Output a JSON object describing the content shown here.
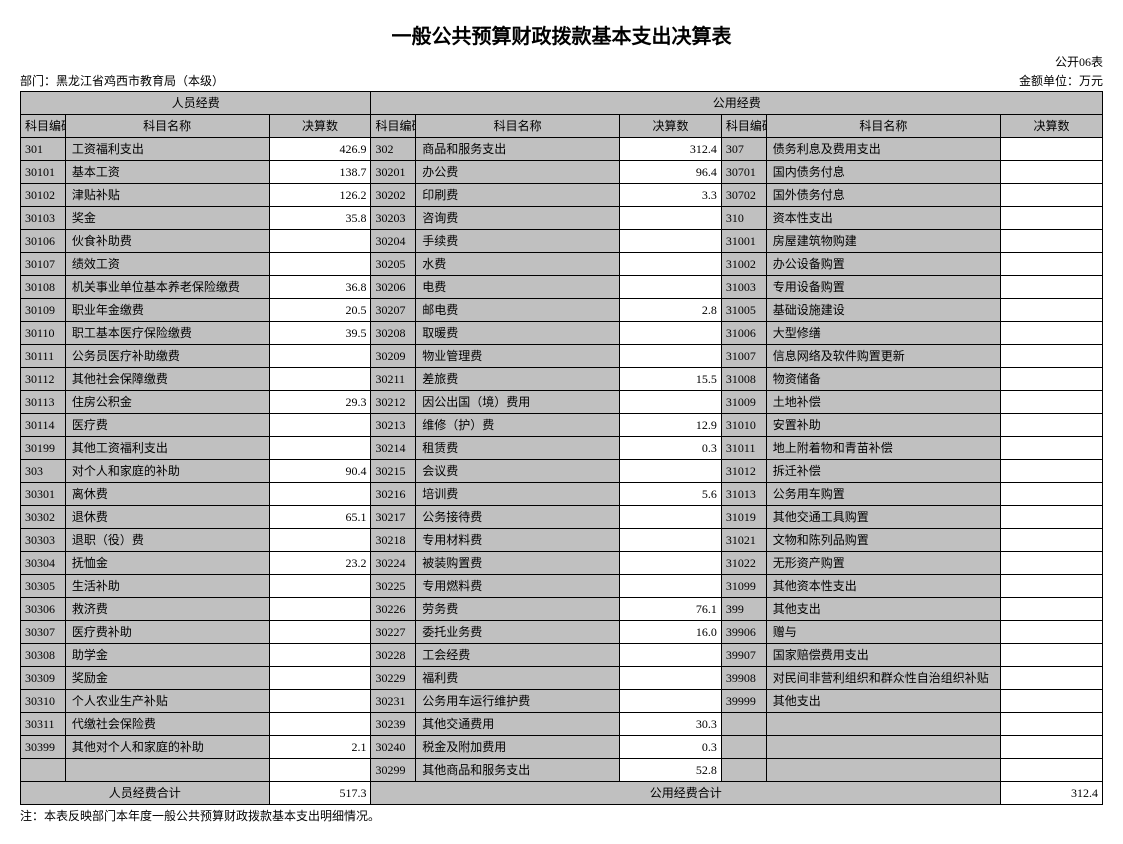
{
  "title": "一般公共预算财政拨款基本支出决算表",
  "table_label": "公开06表",
  "department_label": "部门：",
  "department": "黑龙江省鸡西市教育局（本级）",
  "unit_label": "金额单位：万元",
  "section1_header": "人员经费",
  "section2_header": "公用经费",
  "col_code": "科目编码",
  "col_name": "科目名称",
  "col_amount": "决算数",
  "personnel_total_label": "人员经费合计",
  "personnel_total": "517.3",
  "public_total_label": "公用经费合计",
  "public_total": "312.4",
  "note": "注：本表反映部门本年度一般公共预算财政拨款基本支出明细情况。",
  "rows": [
    {
      "c1": "301",
      "n1": "工资福利支出",
      "a1": "426.9",
      "c2": "302",
      "n2": "商品和服务支出",
      "a2": "312.4",
      "c3": "307",
      "n3": "债务利息及费用支出",
      "a3": ""
    },
    {
      "c1": "30101",
      "n1": "基本工资",
      "a1": "138.7",
      "c2": "30201",
      "n2": "办公费",
      "a2": "96.4",
      "c3": "30701",
      "n3": "国内债务付息",
      "a3": ""
    },
    {
      "c1": "30102",
      "n1": "津贴补贴",
      "a1": "126.2",
      "c2": "30202",
      "n2": "印刷费",
      "a2": "3.3",
      "c3": "30702",
      "n3": "国外债务付息",
      "a3": ""
    },
    {
      "c1": "30103",
      "n1": "奖金",
      "a1": "35.8",
      "c2": "30203",
      "n2": "咨询费",
      "a2": "",
      "c3": "310",
      "n3": "资本性支出",
      "a3": ""
    },
    {
      "c1": "30106",
      "n1": "伙食补助费",
      "a1": "",
      "c2": "30204",
      "n2": "手续费",
      "a2": "",
      "c3": "31001",
      "n3": "房屋建筑物购建",
      "a3": ""
    },
    {
      "c1": "30107",
      "n1": "绩效工资",
      "a1": "",
      "c2": "30205",
      "n2": "水费",
      "a2": "",
      "c3": "31002",
      "n3": "办公设备购置",
      "a3": ""
    },
    {
      "c1": "30108",
      "n1": "机关事业单位基本养老保险缴费",
      "a1": "36.8",
      "c2": "30206",
      "n2": "电费",
      "a2": "",
      "c3": "31003",
      "n3": "专用设备购置",
      "a3": ""
    },
    {
      "c1": "30109",
      "n1": "职业年金缴费",
      "a1": "20.5",
      "c2": "30207",
      "n2": "邮电费",
      "a2": "2.8",
      "c3": "31005",
      "n3": "基础设施建设",
      "a3": ""
    },
    {
      "c1": "30110",
      "n1": "职工基本医疗保险缴费",
      "a1": "39.5",
      "c2": "30208",
      "n2": "取暖费",
      "a2": "",
      "c3": "31006",
      "n3": "大型修缮",
      "a3": ""
    },
    {
      "c1": "30111",
      "n1": "公务员医疗补助缴费",
      "a1": "",
      "c2": "30209",
      "n2": "物业管理费",
      "a2": "",
      "c3": "31007",
      "n3": "信息网络及软件购置更新",
      "a3": ""
    },
    {
      "c1": "30112",
      "n1": "其他社会保障缴费",
      "a1": "",
      "c2": "30211",
      "n2": "差旅费",
      "a2": "15.5",
      "c3": "31008",
      "n3": "物资储备",
      "a3": ""
    },
    {
      "c1": "30113",
      "n1": "住房公积金",
      "a1": "29.3",
      "c2": "30212",
      "n2": "因公出国（境）费用",
      "a2": "",
      "c3": "31009",
      "n3": "土地补偿",
      "a3": ""
    },
    {
      "c1": "30114",
      "n1": "医疗费",
      "a1": "",
      "c2": "30213",
      "n2": "维修（护）费",
      "a2": "12.9",
      "c3": "31010",
      "n3": "安置补助",
      "a3": ""
    },
    {
      "c1": "30199",
      "n1": "其他工资福利支出",
      "a1": "",
      "c2": "30214",
      "n2": "租赁费",
      "a2": "0.3",
      "c3": "31011",
      "n3": "地上附着物和青苗补偿",
      "a3": ""
    },
    {
      "c1": "303",
      "n1": "对个人和家庭的补助",
      "a1": "90.4",
      "c2": "30215",
      "n2": "会议费",
      "a2": "",
      "c3": "31012",
      "n3": "拆迁补偿",
      "a3": ""
    },
    {
      "c1": "30301",
      "n1": "离休费",
      "a1": "",
      "c2": "30216",
      "n2": "培训费",
      "a2": "5.6",
      "c3": "31013",
      "n3": "公务用车购置",
      "a3": ""
    },
    {
      "c1": "30302",
      "n1": "退休费",
      "a1": "65.1",
      "c2": "30217",
      "n2": "公务接待费",
      "a2": "",
      "c3": "31019",
      "n3": "其他交通工具购置",
      "a3": ""
    },
    {
      "c1": "30303",
      "n1": "退职（役）费",
      "a1": "",
      "c2": "30218",
      "n2": "专用材料费",
      "a2": "",
      "c3": "31021",
      "n3": "文物和陈列品购置",
      "a3": ""
    },
    {
      "c1": "30304",
      "n1": "抚恤金",
      "a1": "23.2",
      "c2": "30224",
      "n2": "被装购置费",
      "a2": "",
      "c3": "31022",
      "n3": "无形资产购置",
      "a3": ""
    },
    {
      "c1": "30305",
      "n1": "生活补助",
      "a1": "",
      "c2": "30225",
      "n2": "专用燃料费",
      "a2": "",
      "c3": "31099",
      "n3": "其他资本性支出",
      "a3": ""
    },
    {
      "c1": "30306",
      "n1": "救济费",
      "a1": "",
      "c2": "30226",
      "n2": "劳务费",
      "a2": "76.1",
      "c3": "399",
      "n3": "其他支出",
      "a3": ""
    },
    {
      "c1": "30307",
      "n1": "医疗费补助",
      "a1": "",
      "c2": "30227",
      "n2": "委托业务费",
      "a2": "16.0",
      "c3": "39906",
      "n3": "赠与",
      "a3": ""
    },
    {
      "c1": "30308",
      "n1": "助学金",
      "a1": "",
      "c2": "30228",
      "n2": "工会经费",
      "a2": "",
      "c3": "39907",
      "n3": "国家赔偿费用支出",
      "a3": ""
    },
    {
      "c1": "30309",
      "n1": "奖励金",
      "a1": "",
      "c2": "30229",
      "n2": "福利费",
      "a2": "",
      "c3": "39908",
      "n3": "对民间非营利组织和群众性自治组织补贴",
      "a3": ""
    },
    {
      "c1": "30310",
      "n1": "个人农业生产补贴",
      "a1": "",
      "c2": "30231",
      "n2": "公务用车运行维护费",
      "a2": "",
      "c3": "39999",
      "n3": "其他支出",
      "a3": ""
    },
    {
      "c1": "30311",
      "n1": "代缴社会保险费",
      "a1": "",
      "c2": "30239",
      "n2": "其他交通费用",
      "a2": "30.3",
      "c3": "",
      "n3": "",
      "a3": ""
    },
    {
      "c1": "30399",
      "n1": "其他对个人和家庭的补助",
      "a1": "2.1",
      "c2": "30240",
      "n2": "税金及附加费用",
      "a2": "0.3",
      "c3": "",
      "n3": "",
      "a3": ""
    },
    {
      "c1": "",
      "n1": "",
      "a1": "",
      "c2": "30299",
      "n2": "其他商品和服务支出",
      "a2": "52.8",
      "c3": "",
      "n3": "",
      "a3": ""
    }
  ]
}
